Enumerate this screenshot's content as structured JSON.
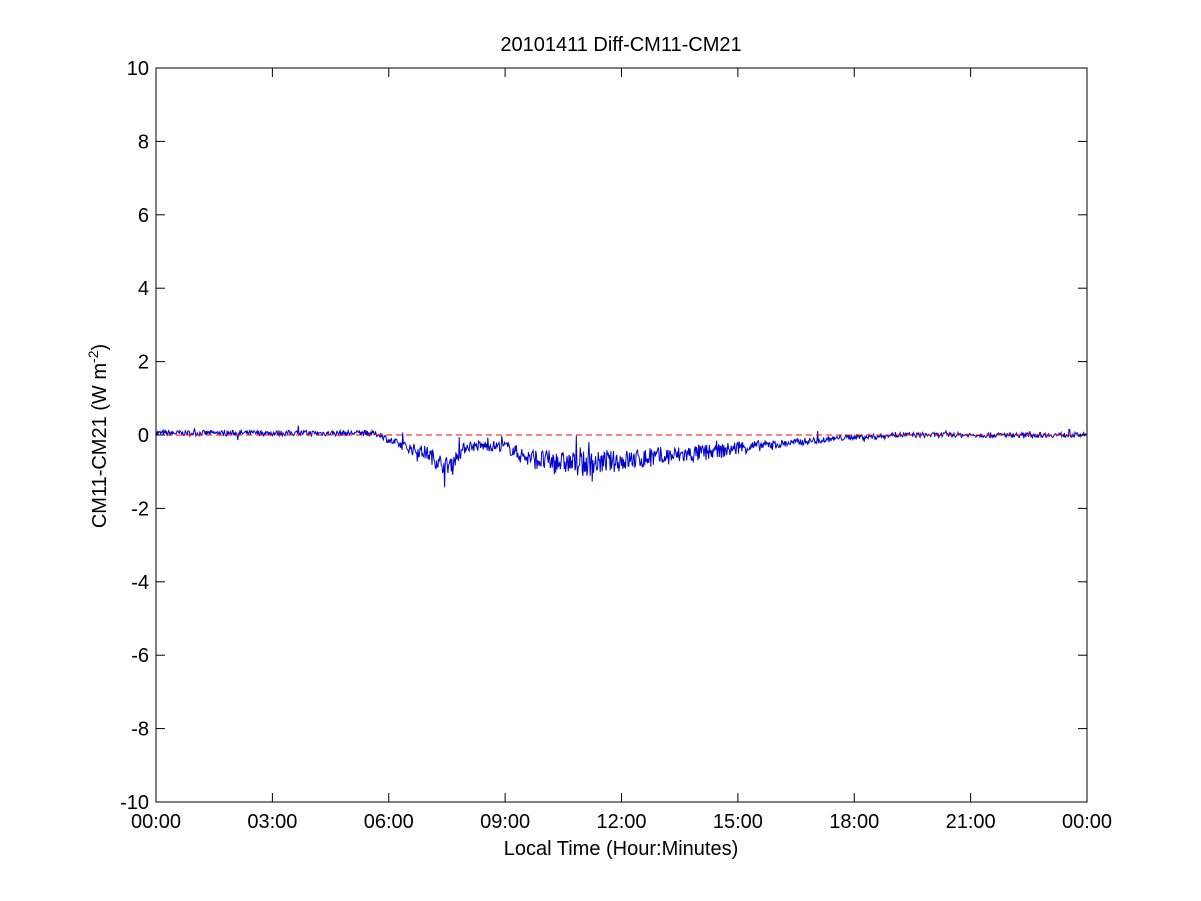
{
  "chart_data": {
    "type": "line",
    "title": "20101411 Diff-CM11-CM21",
    "xlabel": "Local Time (Hour:Minutes)",
    "ylabel_main": "CM11-CM21 (W m",
    "ylabel_sup": "-2",
    "ylabel_close": ")",
    "xlim": [
      0,
      24
    ],
    "ylim": [
      -10,
      10
    ],
    "x_ticks": [
      0,
      3,
      6,
      9,
      12,
      15,
      18,
      21,
      24
    ],
    "x_tick_labels": [
      "00:00",
      "03:00",
      "06:00",
      "09:00",
      "12:00",
      "15:00",
      "18:00",
      "21:00",
      "00:00"
    ],
    "y_ticks": [
      -10,
      -8,
      -6,
      -4,
      -2,
      0,
      2,
      4,
      6,
      8,
      10
    ],
    "y_tick_labels": [
      "-10",
      "-8",
      "-6",
      "-4",
      "-2",
      "0",
      "2",
      "4",
      "6",
      "8",
      "10"
    ],
    "grid": false,
    "series": [
      {
        "color": "#0000cc",
        "style": "solid",
        "x": [
          0,
          0.5,
          1,
          1.5,
          2,
          2.5,
          3,
          3.5,
          4,
          4.5,
          5,
          5.5,
          5.8,
          6,
          6.5,
          7,
          7.25,
          7.5,
          7.75,
          8,
          8.5,
          9,
          9.5,
          10,
          10.5,
          11,
          11.5,
          12,
          12.5,
          13,
          13.5,
          14,
          14.5,
          15,
          15.5,
          16,
          16.5,
          17,
          17.5,
          18,
          18.5,
          19,
          19.5,
          20,
          20.5,
          21,
          21.5,
          22,
          22.5,
          23,
          23.5,
          24
        ],
        "y": [
          0.05,
          0.05,
          0.05,
          0.05,
          0.05,
          0.05,
          0.05,
          0.05,
          0.05,
          0.05,
          0.05,
          0.05,
          0.0,
          -0.15,
          -0.35,
          -0.5,
          -0.7,
          -0.85,
          -0.6,
          -0.3,
          -0.3,
          -0.3,
          -0.6,
          -0.7,
          -0.75,
          -0.8,
          -0.75,
          -0.7,
          -0.65,
          -0.6,
          -0.55,
          -0.5,
          -0.45,
          -0.35,
          -0.3,
          -0.25,
          -0.2,
          -0.15,
          -0.1,
          -0.05,
          -0.05,
          0.0,
          0.0,
          0.0,
          0.0,
          0.0,
          0.0,
          0.0,
          0.0,
          0.0,
          0.0,
          0.0
        ],
        "noise": [
          0.08,
          0.08,
          0.08,
          0.08,
          0.08,
          0.08,
          0.08,
          0.08,
          0.08,
          0.08,
          0.08,
          0.08,
          0.08,
          0.1,
          0.15,
          0.2,
          0.25,
          0.25,
          0.2,
          0.15,
          0.15,
          0.15,
          0.25,
          0.3,
          0.3,
          0.35,
          0.3,
          0.3,
          0.28,
          0.28,
          0.25,
          0.25,
          0.2,
          0.2,
          0.15,
          0.12,
          0.1,
          0.1,
          0.08,
          0.08,
          0.08,
          0.07,
          0.07,
          0.07,
          0.07,
          0.07,
          0.07,
          0.07,
          0.07,
          0.07,
          0.07,
          0.07
        ]
      },
      {
        "color": "#ff0000",
        "style": "dashed",
        "x": [
          0,
          24
        ],
        "y": [
          0,
          0
        ]
      }
    ]
  }
}
